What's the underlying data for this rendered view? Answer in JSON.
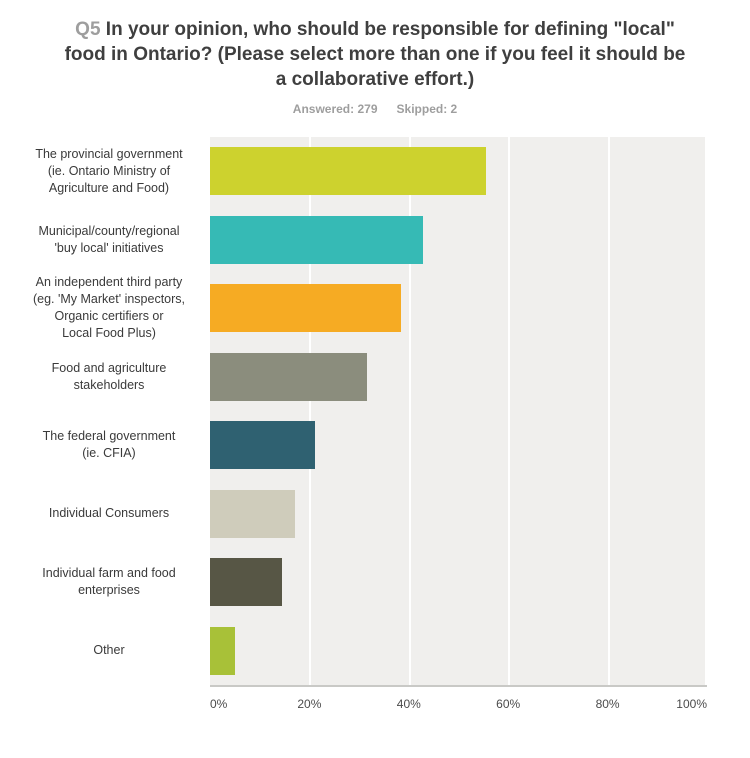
{
  "title": {
    "q": "Q5",
    "lines": [
      "In your opinion, who should be responsible for defining \"local\"",
      "food in Ontario? (Please select more than one if you feel it should be",
      "a collaborative effort.)"
    ]
  },
  "stats": {
    "answered_label": "Answered:",
    "answered_count": "279",
    "skipped_label": "Skipped:",
    "skipped_count": "2"
  },
  "chart_data": {
    "type": "bar",
    "orientation": "horizontal",
    "title": "Q5 In your opinion, who should be responsible for defining \"local\" food in Ontario? (Please select more than one if you feel it should be a collaborative effort.)",
    "answered": 279,
    "skipped": 2,
    "categories": [
      "The provincial government (ie. Ontario Ministry of Agriculture and Food)",
      "Municipal/county/regional 'buy local' initiatives",
      "An independent third party (eg. 'My Market' inspectors, Organic certifiers or Local Food Plus)",
      "Food and agriculture stakeholders",
      "The federal government (ie. CFIA)",
      "Individual Consumers",
      "Individual farm and food enterprises",
      "Other"
    ],
    "label_lines": [
      [
        "The provincial government",
        "(ie. Ontario Ministry of",
        "Agriculture and Food)"
      ],
      [
        "Municipal/county/regional",
        "'buy local' initiatives"
      ],
      [
        "An independent third party",
        "(eg. 'My Market' inspectors,",
        "Organic certifiers or",
        "Local Food Plus)"
      ],
      [
        "Food and agriculture",
        "stakeholders"
      ],
      [
        "The federal government",
        "(ie. CFIA)"
      ],
      [
        "Individual Consumers"
      ],
      [
        "Individual farm and food",
        "enterprises"
      ],
      [
        "Other"
      ]
    ],
    "values": [
      55.5,
      42.9,
      38.4,
      31.6,
      21.1,
      17.1,
      14.4,
      5.1
    ],
    "colors": [
      "#cdd22e",
      "#36bab5",
      "#f6ab23",
      "#8b8d7d",
      "#2f6171",
      "#cfccbb",
      "#575645",
      "#a8c138"
    ],
    "xlabel": "",
    "ylabel": "",
    "xlim": [
      0,
      100
    ],
    "x_ticks": [
      "0%",
      "20%",
      "40%",
      "60%",
      "80%",
      "100%"
    ],
    "grid": true,
    "legend": false,
    "plot_bg": "#f0efed"
  }
}
